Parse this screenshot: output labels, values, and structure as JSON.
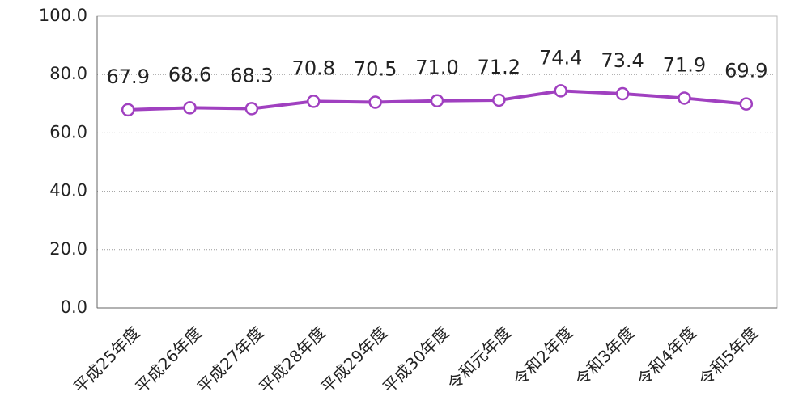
{
  "chart_data": {
    "type": "line",
    "categories": [
      "平成25年度",
      "平成26年度",
      "平成27年度",
      "平成28年度",
      "平成29年度",
      "平成30年度",
      "令和元年度",
      "令和2年度",
      "令和3年度",
      "令和4年度",
      "令和5年度"
    ],
    "values": [
      67.9,
      68.6,
      68.3,
      70.8,
      70.5,
      71.0,
      71.2,
      74.4,
      73.4,
      71.9,
      69.9
    ],
    "value_labels": [
      "67.9",
      "68.6",
      "68.3",
      "70.8",
      "70.5",
      "71.0",
      "71.2",
      "74.4",
      "73.4",
      "71.9",
      "69.9"
    ],
    "color": "#a040c0",
    "ylim": [
      0,
      100
    ],
    "yticks": [
      {
        "value": 0,
        "label": "0.0"
      },
      {
        "value": 20,
        "label": "20.0"
      },
      {
        "value": 40,
        "label": "40.0"
      },
      {
        "value": 60,
        "label": "60.0"
      },
      {
        "value": 80,
        "label": "80.0"
      },
      {
        "value": 100,
        "label": "100.0"
      }
    ],
    "grid": true
  }
}
